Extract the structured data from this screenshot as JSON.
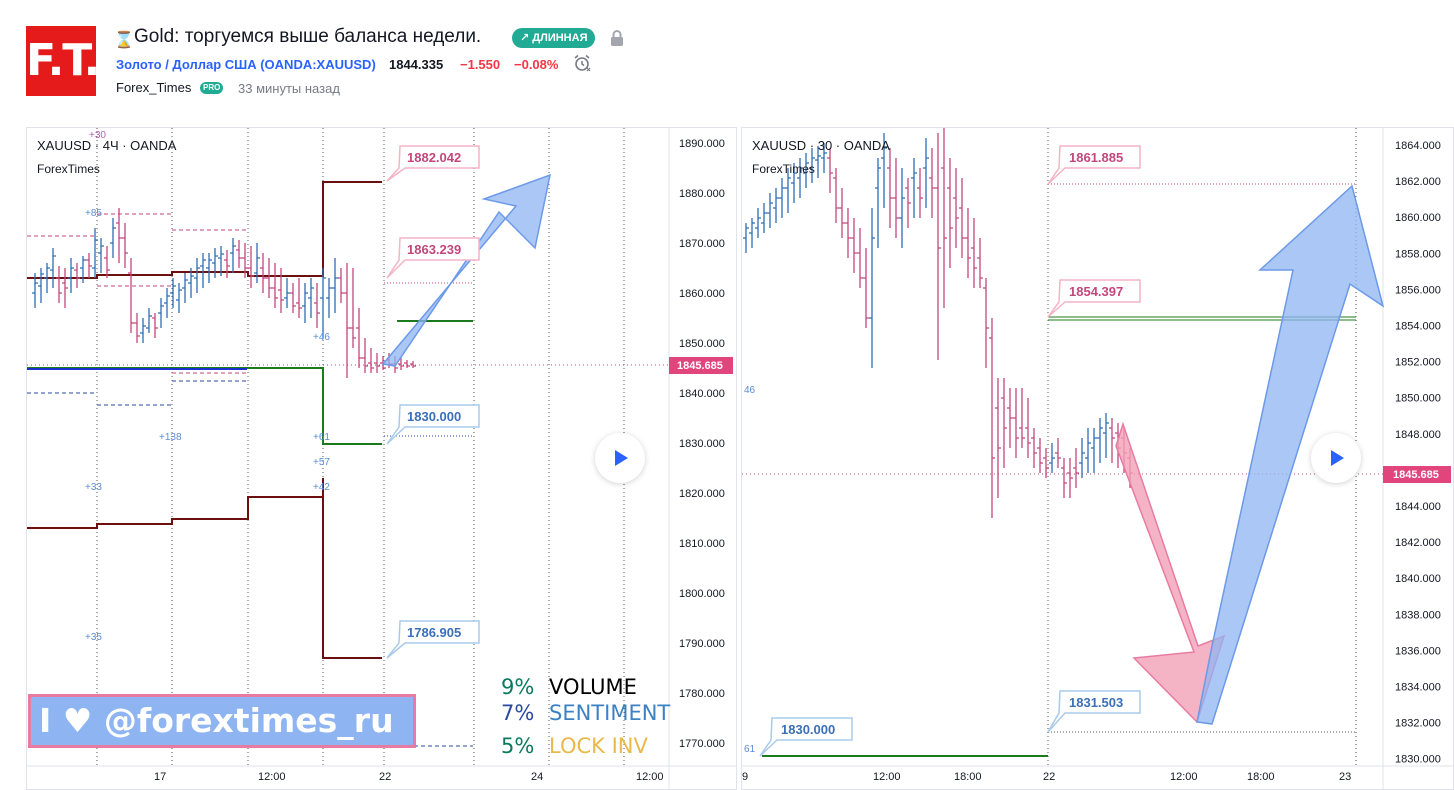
{
  "header": {
    "logo_text": "F.T.",
    "idea_title": "Gold: торгуемся выше баланса недели.",
    "direction_badge": "↗ ДЛИННАЯ",
    "symbol_link": "Золото / Доллар США (OANDA:XAUUSD)",
    "price": "1844.335",
    "change": "−1.550",
    "change_pct": "−0.08%",
    "author": "Forex_Times",
    "author_badge": "PRO",
    "time_ago": "33 минуты назад",
    "icons": [
      "hourglass-icon",
      "lock-icon",
      "alarm-icon"
    ]
  },
  "left_chart": {
    "legend_symbol": "XAUUSD · 4Ч · OANDA",
    "legend_author": "ForexTimes",
    "price_axis": [
      "1890.000",
      "1880.000",
      "1870.000",
      "1860.000",
      "1850.000",
      "1840.000",
      "1830.000",
      "1820.000",
      "1810.000",
      "1800.000",
      "1790.000",
      "1780.000",
      "1770.000"
    ],
    "current_price": "1845.685",
    "time_axis": [
      "17",
      "12:00",
      "22",
      "24",
      "12:00"
    ],
    "callouts": [
      {
        "text": "1882.042",
        "kind": "red"
      },
      {
        "text": "1863.239",
        "kind": "red"
      },
      {
        "text": "1830.000",
        "kind": "blue"
      },
      {
        "text": "1786.905",
        "kind": "blue"
      }
    ],
    "tick_notes": [
      "+30",
      "+85",
      "+46",
      "+138",
      "+61",
      "+57",
      "+42",
      "+33",
      "+35"
    ],
    "promo": "I ♥ @forextimes_ru",
    "stats": [
      {
        "pct": "9%",
        "label": "VOLUME",
        "pct_color": "#0b7a5e",
        "label_color": "#000000"
      },
      {
        "pct": "7%",
        "label": "SENTIMENT",
        "pct_color": "#2a4aa0",
        "label_color": "#3b82c4"
      },
      {
        "pct": "5%",
        "label": "LOCK INV",
        "pct_color": "#0b7a5e",
        "label_color": "#e9b949"
      }
    ]
  },
  "right_chart": {
    "legend_symbol": "XAUUSD · 30 · OANDA",
    "legend_author": "ForexTimes",
    "price_axis": [
      "1864.000",
      "1862.000",
      "1860.000",
      "1858.000",
      "1856.000",
      "1854.000",
      "1852.000",
      "1850.000",
      "1848.000",
      "1846.000",
      "1844.000",
      "1842.000",
      "1840.000",
      "1838.000",
      "1836.000",
      "1834.000",
      "1832.000",
      "1830.000"
    ],
    "current_price": "1845.685",
    "time_axis": [
      "9",
      "12:00",
      "18:00",
      "22",
      "12:00",
      "18:00",
      "23"
    ],
    "callouts": [
      {
        "text": "1861.885",
        "kind": "red"
      },
      {
        "text": "1854.397",
        "kind": "red"
      },
      {
        "text": "1831.503",
        "kind": "blue"
      },
      {
        "text": "1830.000",
        "kind": "blue"
      }
    ],
    "tick_notes": [
      "46",
      "61"
    ]
  },
  "colors": {
    "up_candle": "#2e6db4",
    "down_candle": "#c2477d",
    "level_dark_red": "#6b0f0f",
    "level_green": "#1b7a1b",
    "arrow_blue": "#8fb4f2",
    "arrow_pink": "#f2a0b8",
    "badge_green": "#22ab94",
    "price_tag": "#e0457b"
  }
}
